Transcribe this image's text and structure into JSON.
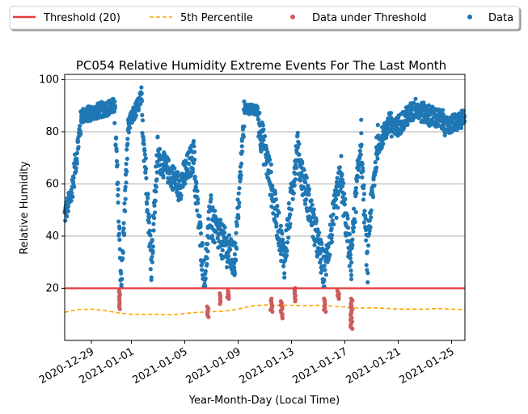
{
  "chart_data": {
    "type": "scatter",
    "title": "PC054 Relative Humidity Extreme Events For The Last Month",
    "xlabel": "Year-Month-Day (Local Time)",
    "ylabel": "Relative Humidity",
    "x_range": [
      "2020-12-27T00:00",
      "2021-01-26T00:00"
    ],
    "ylim": [
      0,
      102
    ],
    "y_ticks": [
      20,
      40,
      60,
      80,
      100
    ],
    "x_ticks": [
      "2020-12-29",
      "2021-01-01",
      "2021-01-05",
      "2021-01-09",
      "2021-01-13",
      "2021-01-17",
      "2021-01-21",
      "2021-01-25"
    ],
    "grid": "horizontal",
    "legend_position": "top",
    "threshold": {
      "name": "Threshold (20)",
      "value": 20,
      "color": "#e8393b"
    },
    "percentile": {
      "name": "5th Percentile",
      "color": "#ffa500",
      "points": [
        [
          "2020-12-27",
          10.8
        ],
        [
          "2020-12-28",
          11.8
        ],
        [
          "2020-12-29",
          12.0
        ],
        [
          "2020-12-30",
          11.4
        ],
        [
          "2020-12-31",
          10.6
        ],
        [
          "2021-01-01",
          10.0
        ],
        [
          "2021-01-02",
          10.0
        ],
        [
          "2021-01-03",
          10.0
        ],
        [
          "2021-01-04",
          9.8
        ],
        [
          "2021-01-05",
          10.3
        ],
        [
          "2021-01-06",
          10.8
        ],
        [
          "2021-01-07",
          11.0
        ],
        [
          "2021-01-08",
          11.2
        ],
        [
          "2021-01-09",
          12.0
        ],
        [
          "2021-01-10",
          13.2
        ],
        [
          "2021-01-11",
          13.6
        ],
        [
          "2021-01-12",
          13.5
        ],
        [
          "2021-01-13",
          13.5
        ],
        [
          "2021-01-14",
          13.3
        ],
        [
          "2021-01-15",
          13.5
        ],
        [
          "2021-01-16",
          13.2
        ],
        [
          "2021-01-17",
          12.8
        ],
        [
          "2021-01-18",
          12.4
        ],
        [
          "2021-01-19",
          12.5
        ],
        [
          "2021-01-20",
          12.3
        ],
        [
          "2021-01-21",
          12.0
        ],
        [
          "2021-01-22",
          12.0
        ],
        [
          "2021-01-23",
          12.0
        ],
        [
          "2021-01-24",
          12.2
        ],
        [
          "2021-01-25",
          12.0
        ],
        [
          "2021-01-26",
          11.8
        ]
      ]
    },
    "series": [
      {
        "name": "Data",
        "color": "#1f77b4",
        "segments": [
          {
            "start": "2020-12-27T00:00",
            "end": "2020-12-27T12:00",
            "from": 48,
            "to": 56,
            "spread": 8
          },
          {
            "start": "2020-12-27T12:00",
            "end": "2020-12-28T06:00",
            "from": 56,
            "to": 85,
            "spread": 10
          },
          {
            "start": "2020-12-28T06:00",
            "end": "2020-12-30T18:00",
            "from": 86,
            "to": 90,
            "spread": 6
          },
          {
            "start": "2020-12-30T18:00",
            "end": "2020-12-31T06:00",
            "from": 88,
            "to": 20,
            "spread": 14
          },
          {
            "start": "2020-12-31T06:00",
            "end": "2020-12-31T18:00",
            "from": 22,
            "to": 80,
            "spread": 12
          },
          {
            "start": "2020-12-31T18:00",
            "end": "2021-01-01T18:00",
            "from": 82,
            "to": 93,
            "spread": 6
          },
          {
            "start": "2021-01-01T18:00",
            "end": "2021-01-02T12:00",
            "from": 92,
            "to": 30,
            "spread": 14
          },
          {
            "start": "2021-01-02T12:00",
            "end": "2021-01-03T00:00",
            "from": 30,
            "to": 75,
            "spread": 14
          },
          {
            "start": "2021-01-03T00:00",
            "end": "2021-01-04T12:00",
            "from": 70,
            "to": 60,
            "spread": 10
          },
          {
            "start": "2021-01-04T12:00",
            "end": "2021-01-05T18:00",
            "from": 58,
            "to": 72,
            "spread": 12
          },
          {
            "start": "2021-01-05T18:00",
            "end": "2021-01-06T12:00",
            "from": 62,
            "to": 22,
            "spread": 14
          },
          {
            "start": "2021-01-06T12:00",
            "end": "2021-01-07T00:00",
            "from": 24,
            "to": 55,
            "spread": 14
          },
          {
            "start": "2021-01-07T00:00",
            "end": "2021-01-08T18:00",
            "from": 45,
            "to": 30,
            "spread": 14
          },
          {
            "start": "2021-01-08T18:00",
            "end": "2021-01-09T12:00",
            "from": 30,
            "to": 90,
            "spread": 12
          },
          {
            "start": "2021-01-09T12:00",
            "end": "2021-01-10T12:00",
            "from": 89,
            "to": 88,
            "spread": 4
          },
          {
            "start": "2021-01-10T12:00",
            "end": "2021-01-11T12:00",
            "from": 85,
            "to": 60,
            "spread": 14
          },
          {
            "start": "2021-01-11T12:00",
            "end": "2021-01-12T12:00",
            "from": 58,
            "to": 30,
            "spread": 14
          },
          {
            "start": "2021-01-12T12:00",
            "end": "2021-01-13T12:00",
            "from": 32,
            "to": 78,
            "spread": 14
          },
          {
            "start": "2021-01-13T12:00",
            "end": "2021-01-14T12:00",
            "from": 70,
            "to": 48,
            "spread": 14
          },
          {
            "start": "2021-01-14T12:00",
            "end": "2021-01-15T12:00",
            "from": 48,
            "to": 25,
            "spread": 14
          },
          {
            "start": "2021-01-15T12:00",
            "end": "2021-01-16T18:00",
            "from": 28,
            "to": 65,
            "spread": 14
          },
          {
            "start": "2021-01-16T18:00",
            "end": "2021-01-17T12:00",
            "from": 60,
            "to": 28,
            "spread": 14
          },
          {
            "start": "2021-01-17T12:00",
            "end": "2021-01-18T06:00",
            "from": 35,
            "to": 80,
            "spread": 12
          },
          {
            "start": "2021-01-18T06:00",
            "end": "2021-01-18T18:00",
            "from": 70,
            "to": 22,
            "spread": 12
          },
          {
            "start": "2021-01-18T18:00",
            "end": "2021-01-19T12:00",
            "from": 40,
            "to": 78,
            "spread": 12
          },
          {
            "start": "2021-01-19T12:00",
            "end": "2021-01-20T12:00",
            "from": 75,
            "to": 85,
            "spread": 8
          },
          {
            "start": "2021-01-20T12:00",
            "end": "2021-01-22T12:00",
            "from": 80,
            "to": 90,
            "spread": 8
          },
          {
            "start": "2021-01-22T12:00",
            "end": "2021-01-24T12:00",
            "from": 88,
            "to": 84,
            "spread": 8
          },
          {
            "start": "2021-01-24T12:00",
            "end": "2021-01-26T00:00",
            "from": 82,
            "to": 85,
            "spread": 7
          }
        ]
      },
      {
        "name": "Data under Threshold",
        "color": "#cd5c5c",
        "clusters": [
          {
            "x": "2020-12-31T02:00",
            "ymin": 12,
            "ymax": 19
          },
          {
            "x": "2021-01-06T18:00",
            "ymin": 9,
            "ymax": 13
          },
          {
            "x": "2021-01-07T16:00",
            "ymin": 14,
            "ymax": 18
          },
          {
            "x": "2021-01-08T06:00",
            "ymin": 16,
            "ymax": 19
          },
          {
            "x": "2021-01-11T12:00",
            "ymin": 11,
            "ymax": 16
          },
          {
            "x": "2021-01-12T06:00",
            "ymin": 8.5,
            "ymax": 15
          },
          {
            "x": "2021-01-13T06:00",
            "ymin": 15,
            "ymax": 20
          },
          {
            "x": "2021-01-15T12:00",
            "ymin": 11,
            "ymax": 16
          },
          {
            "x": "2021-01-16T12:00",
            "ymin": 16,
            "ymax": 19
          },
          {
            "x": "2021-01-17T12:00",
            "ymin": 4.5,
            "ymax": 16
          }
        ]
      }
    ]
  }
}
